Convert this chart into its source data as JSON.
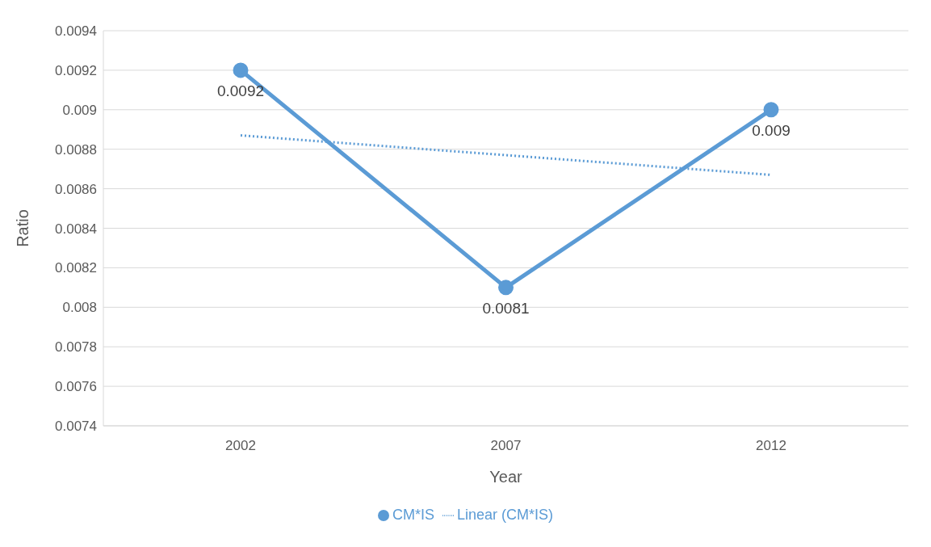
{
  "chart_data": {
    "type": "line",
    "categories": [
      "2002",
      "2007",
      "2012"
    ],
    "xlabel": "Year",
    "ylabel": "Ratio",
    "ylim": [
      0.0074,
      0.0094
    ],
    "yticks": [
      0.0074,
      0.0076,
      0.0078,
      0.008,
      0.0082,
      0.0084,
      0.0086,
      0.0088,
      0.009,
      0.0092,
      0.0094
    ],
    "grid": "y",
    "legend": "bottom",
    "series": [
      {
        "name": "CM*IS",
        "type": "line",
        "color": "#5b9bd5",
        "values": [
          0.0092,
          0.0081,
          0.009
        ],
        "value_labels": [
          "0.0092",
          "0.0081",
          "0.009"
        ],
        "marker": "circle",
        "line_style": "solid"
      },
      {
        "name": "Linear (CM*IS)",
        "type": "line",
        "color": "#5b9bd5",
        "values": [
          0.00887,
          0.00877,
          0.00867
        ],
        "marker": "none",
        "line_style": "dotted"
      }
    ]
  }
}
